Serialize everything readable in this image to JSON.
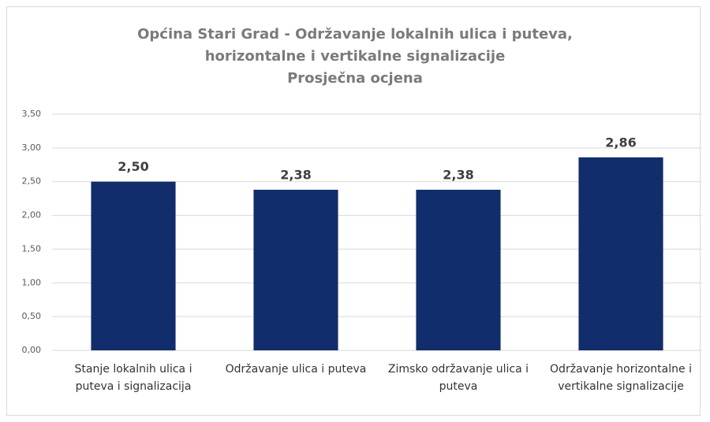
{
  "chart_data": {
    "type": "bar",
    "title": "Općina Stari Grad - Održavanje lokalnih ulica i puteva, horizontalne i vertikalne signalizacije",
    "subtitle": "Prosječna ocjena",
    "categories": [
      "Stanje lokalnih ulica i puteva i signalizacija",
      "Održavanje ulica i puteva",
      "Zimsko održavanje ulica i puteva",
      "Održavanje horizontalne i vertikalne signalizacije"
    ],
    "values": [
      2.5,
      2.38,
      2.38,
      2.86
    ],
    "value_labels": [
      "2,50",
      "2,38",
      "2,38",
      "2,86"
    ],
    "color": "#122d6b",
    "ylim": [
      0,
      3.5
    ],
    "yticks": [
      {
        "value": 0,
        "label": "0,00"
      },
      {
        "value": 0.5,
        "label": "0,50"
      },
      {
        "value": 1,
        "label": "1,00"
      },
      {
        "value": 1.5,
        "label": "1,50"
      },
      {
        "value": 2,
        "label": "2,00"
      },
      {
        "value": 2.5,
        "label": "2,50"
      },
      {
        "value": 3,
        "label": "3,00"
      },
      {
        "value": 3.5,
        "label": "3,50"
      }
    ],
    "grid": true
  }
}
